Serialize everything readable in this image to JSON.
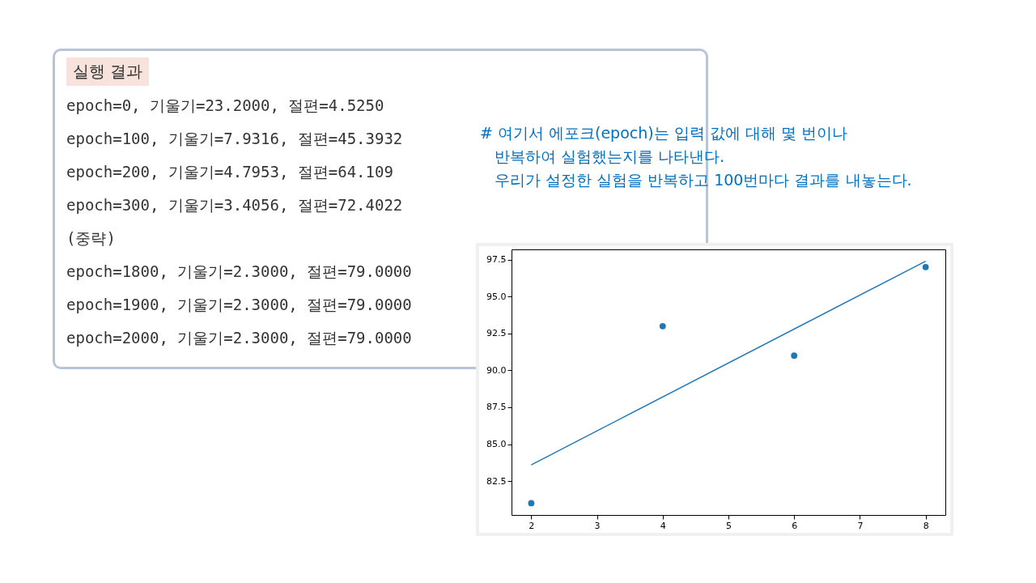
{
  "chart_data": {
    "type": "scatter",
    "annotations": [
      "실행 결과",
      "epoch=0, 기울기=23.2000, 절편=4.5250",
      "epoch=100, 기울기=7.9316, 절편=45.3932",
      "epoch=200, 기울기=4.7953, 절편=64.109",
      "epoch=300, 기울기=3.4056, 절편=72.4022",
      "(중략)",
      "epoch=1800, 기울기=2.3000, 절편=79.0000",
      "epoch=1900, 기울기=2.3000, 절편=79.0000",
      "epoch=2000, 기울기=2.3000, 절편=79.0000",
      "# 여기서 에포크(epoch)는 입력 값에 대해 몇 번이나",
      "반복하여 실험했는지를 나타낸다.",
      "우리가 설정한 실험을 반복하고 100번마다 결과를 내놓는다."
    ],
    "series": [
      {
        "color": "#1f77b4",
        "marker": "circle",
        "x": [
          2,
          4,
          6,
          8
        ],
        "values": [
          81,
          93,
          91,
          97
        ]
      },
      {
        "type": "line",
        "marker": "none",
        "color": "#1f77b4",
        "x": [
          2,
          8
        ],
        "values": [
          83.6,
          97.4
        ]
      }
    ],
    "grid": false,
    "xlim": [
      1.7,
      8.3
    ],
    "xticks": [
      2,
      3,
      4,
      5,
      6,
      7,
      8
    ],
    "ylim": [
      80.2,
      98.2
    ],
    "yticks": [
      82.5,
      {
        "value": 85,
        "label": "85.0"
      },
      87.5,
      {
        "value": 90,
        "label": "90.0"
      },
      92.5,
      {
        "value": 95,
        "label": "95.0"
      },
      97.5
    ]
  }
}
